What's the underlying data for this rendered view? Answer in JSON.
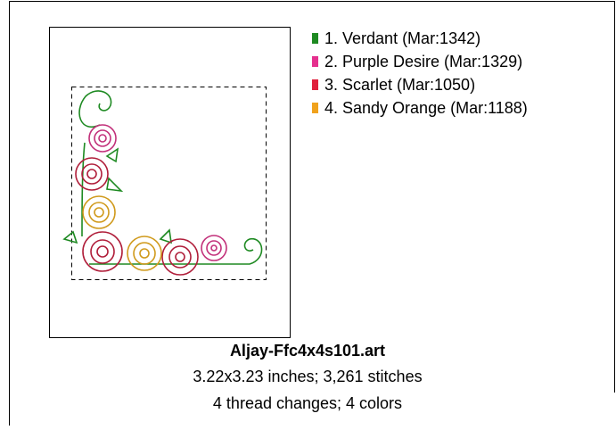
{
  "threads": [
    {
      "label": "1.  Verdant (Mar:1342)",
      "color": "#1e8a22"
    },
    {
      "label": "2.  Purple Desire (Mar:1329)",
      "color": "#e5308e"
    },
    {
      "label": "3.  Scarlet (Mar:1050)",
      "color": "#e0213d"
    },
    {
      "label": "4.  Sandy Orange (Mar:1188)",
      "color": "#f0a21c"
    }
  ],
  "design": {
    "title": "Aljay-Ffc4x4s101.art",
    "size_line": "3.22x3.23 inches; 3,261 stitches",
    "colors_line": "4 thread changes; 4 colors"
  }
}
